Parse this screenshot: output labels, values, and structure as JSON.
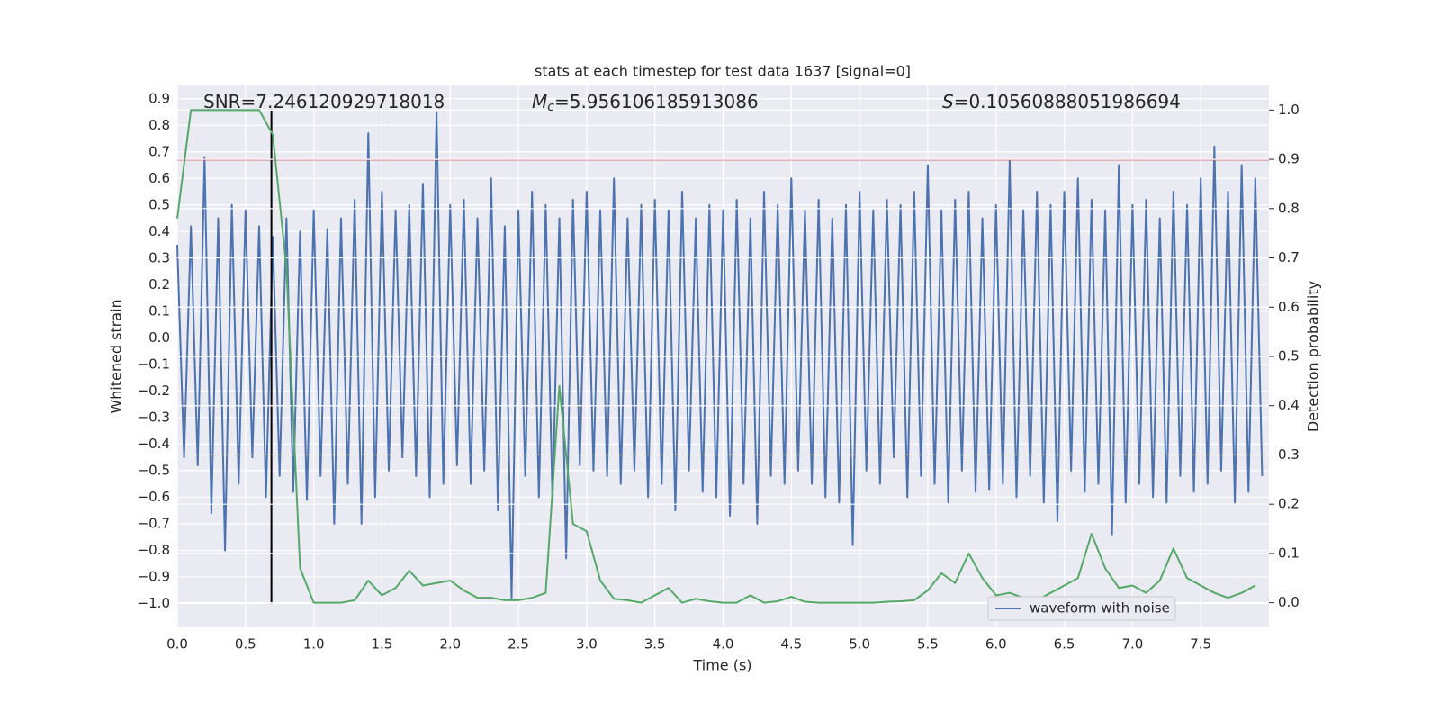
{
  "chart_data": {
    "type": "line",
    "title": "stats at each timestep for test data 1637 [signal=0]",
    "xlabel": "Time (s)",
    "ylabel": "Whitened strain",
    "y2label": "Detection probability",
    "xlim": [
      0,
      8.0
    ],
    "ylim": [
      -1.09,
      0.95
    ],
    "y2lim": [
      -0.05,
      1.05
    ],
    "xticks": [
      {
        "value": 0,
        "label": "0.0"
      },
      {
        "value": 0.5,
        "label": "0.5"
      },
      {
        "value": 1,
        "label": "1.0"
      },
      {
        "value": 1.5,
        "label": "1.5"
      },
      {
        "value": 2,
        "label": "2.0"
      },
      {
        "value": 2.5,
        "label": "2.5"
      },
      {
        "value": 3,
        "label": "3.0"
      },
      {
        "value": 3.5,
        "label": "3.5"
      },
      {
        "value": 4,
        "label": "4.0"
      },
      {
        "value": 4.5,
        "label": "4.5"
      },
      {
        "value": 5,
        "label": "5.0"
      },
      {
        "value": 5.5,
        "label": "5.5"
      },
      {
        "value": 6,
        "label": "6.0"
      },
      {
        "value": 6.5,
        "label": "6.5"
      },
      {
        "value": 7,
        "label": "7.0"
      },
      {
        "value": 7.5,
        "label": "7.5"
      }
    ],
    "yticks": [
      {
        "value": -1,
        "label": "−1.0"
      },
      {
        "value": -0.9,
        "label": "−0.9"
      },
      {
        "value": -0.8,
        "label": "−0.8"
      },
      {
        "value": -0.7,
        "label": "−0.7"
      },
      {
        "value": -0.6,
        "label": "−0.6"
      },
      {
        "value": -0.5,
        "label": "−0.5"
      },
      {
        "value": -0.4,
        "label": "−0.4"
      },
      {
        "value": -0.3,
        "label": "−0.3"
      },
      {
        "value": -0.2,
        "label": "−0.2"
      },
      {
        "value": -0.1,
        "label": "−0.1"
      },
      {
        "value": 0,
        "label": "0.0"
      },
      {
        "value": 0.1,
        "label": "0.1"
      },
      {
        "value": 0.2,
        "label": "0.2"
      },
      {
        "value": 0.3,
        "label": "0.3"
      },
      {
        "value": 0.4,
        "label": "0.4"
      },
      {
        "value": 0.5,
        "label": "0.5"
      },
      {
        "value": 0.6,
        "label": "0.6"
      },
      {
        "value": 0.7,
        "label": "0.7"
      },
      {
        "value": 0.8,
        "label": "0.8"
      },
      {
        "value": 0.9,
        "label": "0.9"
      }
    ],
    "y2ticks": [
      {
        "value": 0,
        "label": "0.0"
      },
      {
        "value": 0.1,
        "label": "0.1"
      },
      {
        "value": 0.2,
        "label": "0.2"
      },
      {
        "value": 0.3,
        "label": "0.3"
      },
      {
        "value": 0.4,
        "label": "0.4"
      },
      {
        "value": 0.5,
        "label": "0.5"
      },
      {
        "value": 0.6,
        "label": "0.6"
      },
      {
        "value": 0.7,
        "label": "0.7"
      },
      {
        "value": 0.8,
        "label": "0.8"
      },
      {
        "value": 0.9,
        "label": "0.9"
      },
      {
        "value": 1,
        "label": "1.0"
      }
    ],
    "grid": true,
    "y2grid": true,
    "legend": "lower right",
    "series": [
      {
        "name": "waveform with noise",
        "color": "#4c72b0",
        "x": [
          0,
          0.05,
          0.1,
          0.15,
          0.2,
          0.25,
          0.3,
          0.35,
          0.4,
          0.45,
          0.5,
          0.55,
          0.6,
          0.65,
          0.7,
          0.75,
          0.8,
          0.85,
          0.9,
          0.95,
          1,
          1.05,
          1.1,
          1.15,
          1.2,
          1.25,
          1.3,
          1.35,
          1.4,
          1.45,
          1.5,
          1.55,
          1.6,
          1.65,
          1.7,
          1.75,
          1.8,
          1.85,
          1.9,
          1.95,
          2,
          2.05,
          2.1,
          2.15,
          2.2,
          2.25,
          2.3,
          2.35,
          2.4,
          2.45,
          2.5,
          2.55,
          2.6,
          2.65,
          2.7,
          2.75,
          2.8,
          2.85,
          2.9,
          2.95,
          3,
          3.05,
          3.1,
          3.15,
          3.2,
          3.25,
          3.3,
          3.35,
          3.4,
          3.45,
          3.5,
          3.55,
          3.6,
          3.65,
          3.7,
          3.75,
          3.8,
          3.85,
          3.9,
          3.95,
          4,
          4.05,
          4.1,
          4.15,
          4.2,
          4.25,
          4.3,
          4.35,
          4.4,
          4.45,
          4.5,
          4.55,
          4.6,
          4.65,
          4.7,
          4.75,
          4.8,
          4.85,
          4.9,
          4.95,
          5,
          5.05,
          5.1,
          5.15,
          5.2,
          5.25,
          5.3,
          5.35,
          5.4,
          5.45,
          5.5,
          5.55,
          5.6,
          5.65,
          5.7,
          5.75,
          5.8,
          5.85,
          5.9,
          5.95,
          6,
          6.05,
          6.1,
          6.15,
          6.2,
          6.25,
          6.3,
          6.35,
          6.4,
          6.45,
          6.5,
          6.55,
          6.6,
          6.65,
          6.7,
          6.75,
          6.8,
          6.85,
          6.9,
          6.95,
          7,
          7.05,
          7.1,
          7.15,
          7.2,
          7.25,
          7.3,
          7.35,
          7.4,
          7.45,
          7.5,
          7.55,
          7.6,
          7.65,
          7.7,
          7.75,
          7.8,
          7.85,
          7.9,
          7.95
        ],
        "values": [
          0.35,
          -0.45,
          0.42,
          -0.48,
          0.68,
          -0.66,
          0.45,
          -0.8,
          0.5,
          -0.55,
          0.48,
          -0.45,
          0.42,
          -0.6,
          0.38,
          -0.52,
          0.45,
          -0.58,
          0.4,
          -0.61,
          0.48,
          -0.52,
          0.41,
          -0.7,
          0.45,
          -0.55,
          0.52,
          -0.7,
          0.77,
          -0.6,
          0.55,
          -0.5,
          0.48,
          -0.45,
          0.5,
          -0.52,
          0.58,
          -0.6,
          0.85,
          -0.55,
          0.5,
          -0.48,
          0.52,
          -0.55,
          0.45,
          -0.5,
          0.6,
          -0.65,
          0.42,
          -0.98,
          0.48,
          -0.52,
          0.55,
          -0.6,
          0.5,
          -0.62,
          0.45,
          -0.83,
          0.52,
          -0.48,
          0.55,
          -0.5,
          0.48,
          -0.52,
          0.6,
          -0.55,
          0.45,
          -0.5,
          0.5,
          -0.6,
          0.52,
          -0.55,
          0.48,
          -0.65,
          0.55,
          -0.5,
          0.45,
          -0.58,
          0.5,
          -0.6,
          0.48,
          -0.67,
          0.52,
          -0.55,
          0.45,
          -0.7,
          0.55,
          -0.52,
          0.5,
          -0.55,
          0.6,
          -0.5,
          0.48,
          -0.55,
          0.52,
          -0.6,
          0.45,
          -0.62,
          0.5,
          -0.78,
          0.55,
          -0.5,
          0.48,
          -0.55,
          0.52,
          -0.45,
          0.5,
          -0.6,
          0.55,
          -0.52,
          0.65,
          -0.55,
          0.48,
          -0.62,
          0.52,
          -0.5,
          0.55,
          -0.58,
          0.45,
          -0.57,
          0.5,
          -0.55,
          0.67,
          -0.6,
          0.48,
          -0.52,
          0.55,
          -0.62,
          0.5,
          -0.69,
          0.55,
          -0.5,
          0.6,
          -0.58,
          0.52,
          -0.55,
          0.48,
          -0.74,
          0.65,
          -0.62,
          0.5,
          -0.55,
          0.52,
          -0.6,
          0.45,
          -0.62,
          0.55,
          -0.52,
          0.5,
          -0.58,
          0.6,
          -0.55,
          0.72,
          -0.5,
          0.55,
          -0.62,
          0.65,
          -0.58,
          0.6,
          -0.52
        ]
      },
      {
        "color": "#55a868",
        "axis": "y2",
        "x": [
          0,
          0.1,
          0.2,
          0.3,
          0.4,
          0.5,
          0.6,
          0.7,
          0.8,
          0.9,
          1,
          1.1,
          1.2,
          1.3,
          1.4,
          1.5,
          1.6,
          1.7,
          1.8,
          1.9,
          2,
          2.1,
          2.2,
          2.3,
          2.4,
          2.5,
          2.6,
          2.7,
          2.8,
          2.9,
          3,
          3.1,
          3.2,
          3.3,
          3.4,
          3.5,
          3.6,
          3.7,
          3.8,
          3.9,
          4,
          4.1,
          4.2,
          4.3,
          4.4,
          4.5,
          4.6,
          4.7,
          4.8,
          4.9,
          5,
          5.1,
          5.2,
          5.3,
          5.4,
          5.5,
          5.6,
          5.7,
          5.8,
          5.9,
          6,
          6.1,
          6.2,
          6.3,
          6.4,
          6.5,
          6.6,
          6.7,
          6.8,
          6.9,
          7,
          7.1,
          7.2,
          7.3,
          7.4,
          7.5,
          7.6,
          7.7,
          7.8,
          7.9
        ],
        "values": [
          0.78,
          1.0,
          1.0,
          1.0,
          1.0,
          1.0,
          1.0,
          0.95,
          0.68,
          0.07,
          0.0,
          0.0,
          0.0,
          0.005,
          0.045,
          0.015,
          0.03,
          0.065,
          0.035,
          0.04,
          0.045,
          0.025,
          0.01,
          0.01,
          0.005,
          0.005,
          0.01,
          0.02,
          0.44,
          0.16,
          0.145,
          0.045,
          0.008,
          0.005,
          0.0,
          0.015,
          0.03,
          0.0,
          0.008,
          0.003,
          0.0,
          0.0,
          0.015,
          0.0,
          0.003,
          0.012,
          0.002,
          0.0,
          0.0,
          0.0,
          0.0,
          0.0,
          0.002,
          0.003,
          0.005,
          0.025,
          0.06,
          0.04,
          0.1,
          0.05,
          0.015,
          0.02,
          0.01,
          0.005,
          0.02,
          0.035,
          0.05,
          0.14,
          0.07,
          0.03,
          0.035,
          0.02,
          0.045,
          0.11,
          0.05,
          0.035,
          0.02,
          0.01,
          0.02,
          0.035
        ]
      }
    ],
    "hlines": [
      {
        "y": 0.67,
        "color": "#c44e52"
      }
    ],
    "vlines": [
      {
        "x": 0.69,
        "ymin": -1.0,
        "ymax": 0.86,
        "color": "#000000"
      }
    ],
    "annotations": [
      {
        "text": "SNR=7.246120929718018"
      },
      {
        "symbol": "M",
        "subscript": "c",
        "text": "=5.956106185913086"
      },
      {
        "symbol": "S",
        "text": "=0.10560888051986694"
      }
    ]
  }
}
